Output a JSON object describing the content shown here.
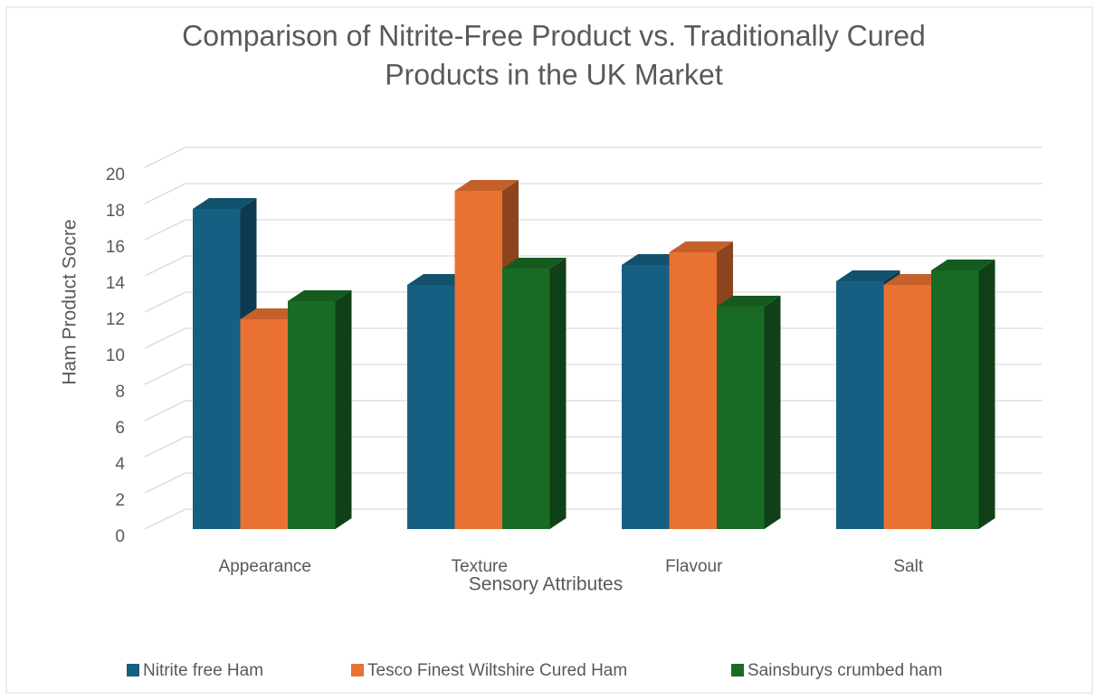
{
  "chart_data": {
    "type": "bar3d",
    "title": [
      "Comparison of Nitrite-Free Product vs. Traditionally Cured",
      "Products in the UK Market"
    ],
    "x_label": "Sensory Attributes",
    "y_label": "Ham Product Socre",
    "categories": [
      "Appearance",
      "Texture",
      "Flavour",
      "Salt"
    ],
    "series": [
      {
        "name": "Nitrite free Ham",
        "color": "#156082",
        "values": [
          17.7,
          13.5,
          14.6,
          13.7
        ]
      },
      {
        "name": "Tesco Finest Wiltshire Cured Ham",
        "color": "#E97132",
        "values": [
          11.6,
          18.7,
          15.3,
          13.5
        ]
      },
      {
        "name": "Sainsburys crumbed ham",
        "color": "#196B24",
        "values": [
          12.6,
          14.4,
          12.3,
          14.3
        ]
      }
    ],
    "ylim": [
      0,
      20
    ],
    "yticks": [
      0,
      2,
      4,
      6,
      8,
      10,
      12,
      14,
      16,
      18,
      20
    ],
    "grid": true,
    "legend": "bottom"
  }
}
